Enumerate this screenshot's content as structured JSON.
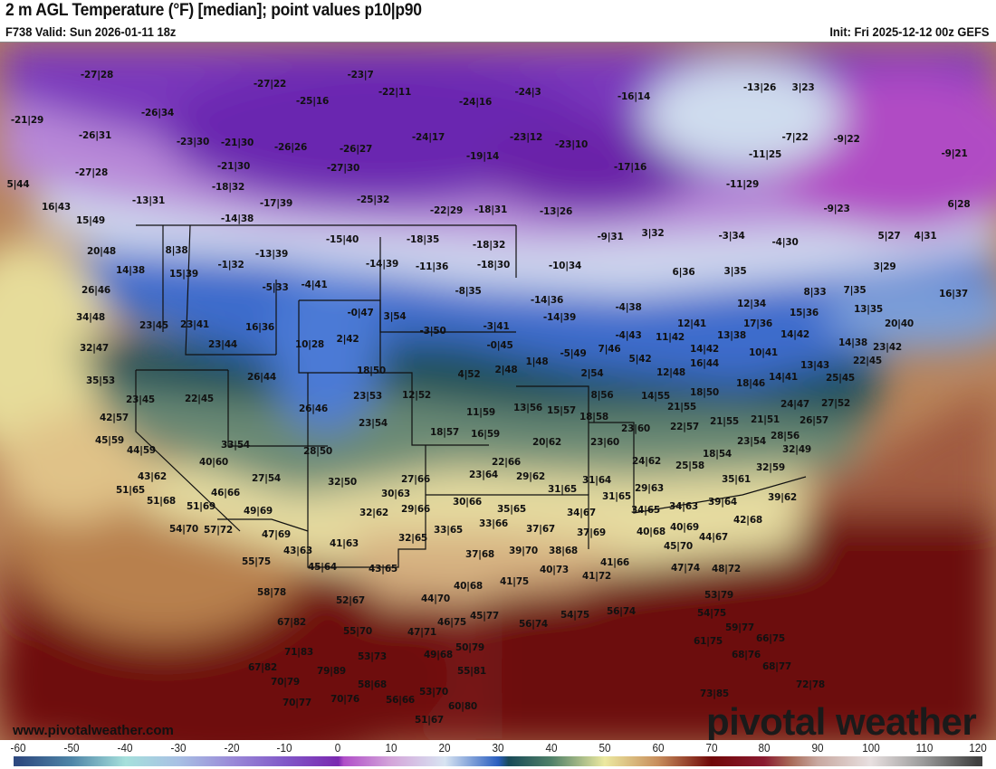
{
  "header": {
    "title": "2 m AGL Temperature (°F) [median]; point values p10|p90",
    "valid": "F738 Valid: Sun 2026-01-11 18z",
    "init": "Init: Fri 2025-12-12 00z GEFS"
  },
  "watermark": {
    "url": "www.pivotalweather.com",
    "brand": "pivotal weather"
  },
  "legend": {
    "unit": "°F",
    "ticks": [
      "-60",
      "-50",
      "-40",
      "-30",
      "-20",
      "-10",
      "0",
      "10",
      "20",
      "30",
      "40",
      "50",
      "60",
      "70",
      "80",
      "90",
      "100",
      "110",
      "120"
    ],
    "colors": {
      "-60": "#2e4a80",
      "-50": "#4f86a8",
      "-40": "#a6e0dc",
      "-30": "#a8c0e4",
      "-20": "#9a8ad8",
      "-10": "#8158c8",
      "0": "#7a28b0",
      "1": "#b04ec8",
      "10": "#d4a6da",
      "20": "#d8e4f2",
      "30": "#2a5ec0",
      "32": "#184a58",
      "40": "#4f8068",
      "50": "#ece9a0",
      "60": "#c88e5c",
      "70": "#700808",
      "80": "#8a1a30",
      "85": "#a86a58",
      "90": "#c8a8a0",
      "100": "#e8e0e0",
      "110": "#9a9a9a",
      "120": "#404040"
    }
  },
  "point_values": [
    "-27|28",
    "-27|22",
    "-23|7",
    "-22|11",
    "-25|16",
    "-24|16",
    "-24|3",
    "-16|14",
    "-13|26",
    "3|23",
    "-21|29",
    "-26|34",
    "-26|31",
    "-23|30",
    "-21|30",
    "-26|26",
    "-26|27",
    "-24|17",
    "-23|12",
    "-23|10",
    "-7|22",
    "-9|22",
    "-11|25",
    "-19|14",
    "-21|30",
    "-27|30",
    "-17|16",
    "-9|21",
    "-27|28",
    "-18|32",
    "-11|29",
    "-25|32",
    "5|44",
    "-13|31",
    "-17|39",
    "-14|38",
    "16|43",
    "-22|29",
    "-18|31",
    "-13|26",
    "-9|23",
    "6|28",
    "15|49",
    "20|48",
    "8|38",
    "-15|40",
    "-18|35",
    "-18|32",
    "-9|31",
    "3|32",
    "-3|34",
    "-4|30",
    "5|27",
    "4|31",
    "-13|39",
    "-1|32",
    "-14|39",
    "-11|36",
    "-18|30",
    "-10|34",
    "6|36",
    "3|35",
    "3|29",
    "14|38",
    "15|39",
    "-5|33",
    "-4|41",
    "-8|35",
    "8|33",
    "7|35",
    "16|37",
    "26|46",
    "-14|36",
    "-4|38",
    "12|34",
    "15|36",
    "13|35",
    "34|48",
    "-0|47",
    "3|54",
    "-14|39",
    "17|36",
    "14|42",
    "20|40",
    "23|45",
    "23|41",
    "16|36",
    "-3|50",
    "-3|41",
    "-4|43",
    "11|42",
    "12|41",
    "13|38",
    "10|28",
    "2|42",
    "23|44",
    "-0|45",
    "32|47",
    "1|48",
    "-5|49",
    "7|46",
    "5|42",
    "14|42",
    "10|41",
    "14|38",
    "23|42",
    "18|50",
    "2|48",
    "4|52",
    "16|44",
    "12|48",
    "13|43",
    "22|45",
    "26|44",
    "35|53",
    "2|54",
    "18|46",
    "14|41",
    "25|45",
    "23|45",
    "22|45",
    "23|53",
    "12|52",
    "8|56",
    "14|55",
    "18|50",
    "24|47",
    "27|52",
    "11|59",
    "13|56",
    "15|57",
    "21|55",
    "26|46",
    "42|57",
    "23|54",
    "18|58",
    "18|57",
    "16|59",
    "23|60",
    "22|57",
    "21|55",
    "21|51",
    "26|57",
    "45|59",
    "44|59",
    "20|62",
    "23|60",
    "28|56",
    "23|54",
    "33|54",
    "28|50",
    "32|49",
    "40|60",
    "18|54",
    "22|66",
    "24|62",
    "25|58",
    "23|64",
    "29|62",
    "27|54",
    "43|62",
    "32|50",
    "27|66",
    "31|64",
    "35|61",
    "32|59",
    "51|65",
    "31|65",
    "31|65",
    "29|63",
    "46|66",
    "30|63",
    "39|62",
    "39|64",
    "30|66",
    "51|68",
    "51|69",
    "32|62",
    "29|66",
    "35|65",
    "34|67",
    "34|65",
    "34|63",
    "42|68",
    "54|70",
    "57|72",
    "49|69",
    "47|69",
    "33|65",
    "33|66",
    "37|67",
    "37|69",
    "40|68",
    "40|69",
    "44|67",
    "43|63",
    "41|63",
    "32|65",
    "37|68",
    "39|70",
    "38|68",
    "45|70",
    "55|75",
    "45|64",
    "43|65",
    "41|75",
    "40|73",
    "41|66",
    "41|72",
    "47|74",
    "48|72",
    "40|68",
    "58|78",
    "52|67",
    "44|70",
    "53|79",
    "46|75",
    "45|77",
    "56|74",
    "54|75",
    "56|74",
    "54|75",
    "67|82",
    "55|70",
    "47|71",
    "59|77",
    "61|75",
    "66|75",
    "50|79",
    "71|83",
    "53|73",
    "49|68",
    "68|76",
    "67|82",
    "79|89",
    "55|81",
    "68|77",
    "70|79",
    "58|68",
    "72|78",
    "70|77",
    "70|76",
    "56|66",
    "53|70",
    "60|80",
    "73|85",
    "51|67"
  ]
}
